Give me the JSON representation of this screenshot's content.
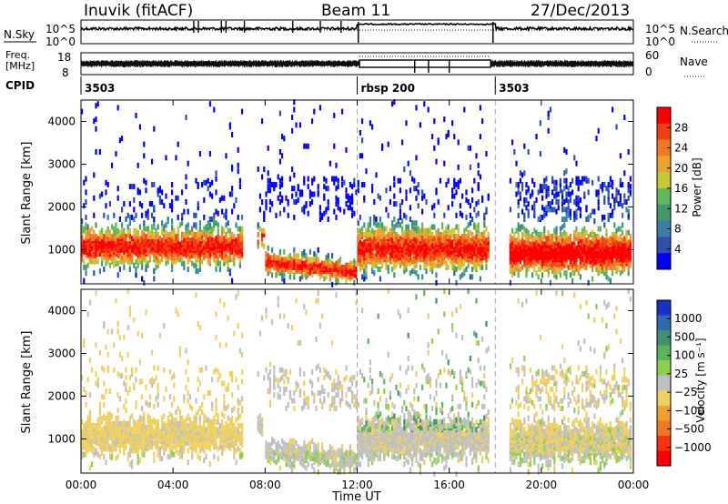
{
  "header": {
    "station": "Inuvik (fitACF)",
    "beam": "Beam 11",
    "date": "27/Dec/2013"
  },
  "status_panels": {
    "nsky_label": "N.Sky",
    "nsearch_label": "N.Search",
    "freq_label_line1": "Freq.",
    "freq_label_line2": "[MHz]",
    "nave_label": "Nave",
    "cpid_label": "CPID",
    "left_ticks_top": [
      "10^5",
      "10^0"
    ],
    "right_ticks_top": [
      "10^5",
      "10^0"
    ],
    "left_ticks_freq": [
      "18",
      "8"
    ],
    "right_ticks_nave": [
      "60",
      "0"
    ],
    "cpid_segments": [
      {
        "label": "3503",
        "start_hour": 0,
        "end_hour": 12
      },
      {
        "label": "rbsp 200",
        "start_hour": 12,
        "end_hour": 18
      },
      {
        "label": "3503",
        "start_hour": 18,
        "end_hour": 24
      }
    ]
  },
  "colors": {
    "power_scale": [
      "#0000ff",
      "#2e4fb0",
      "#3a7fa8",
      "#3e9a6a",
      "#5fb85a",
      "#c8c830",
      "#f0a030",
      "#f07820",
      "#f04010",
      "#ff0000"
    ],
    "velocity_scale": [
      "#1a2fc8",
      "#2e6ab0",
      "#3e9070",
      "#5ab45a",
      "#8ad04a",
      "#c0c0c0",
      "#f0d060",
      "#f0a030",
      "#f07820",
      "#ff3010",
      "#ff0000"
    ]
  },
  "chart_data": [
    {
      "type": "heatmap",
      "panel": "power",
      "ylabel": "Slant Range [km]",
      "xlabel": "",
      "ylim": [
        200,
        4500
      ],
      "yticks": [
        "1000",
        "2000",
        "3000",
        "4000"
      ],
      "xlim_hours": [
        0,
        24
      ],
      "colorbar": {
        "label": "Power [dB]",
        "ticks": [
          "4",
          "8",
          "12",
          "16",
          "20",
          "24",
          "28"
        ],
        "range": [
          0,
          32
        ]
      },
      "dashed_time_markers_hours": [
        12,
        18
      ],
      "data_gaps_hours": [
        [
          7.0,
          7.6
        ],
        [
          17.8,
          18.6
        ]
      ],
      "main_band_km": [
        [
          600,
          1700
        ]
      ],
      "notes_band_stats": [
        {
          "hours": [
            0,
            7
          ],
          "center_km": 1100,
          "power_db": 24
        },
        {
          "hours": [
            8,
            12
          ],
          "center_km": 450,
          "power_db": 28
        },
        {
          "hours": [
            12,
            18
          ],
          "center_km": 1050,
          "power_db": 27
        },
        {
          "hours": [
            18.6,
            24
          ],
          "center_km": 950,
          "power_db": 28
        }
      ]
    },
    {
      "type": "heatmap",
      "panel": "velocity",
      "ylabel": "Slant Range [km]",
      "xlabel": "Time UT",
      "ylim": [
        200,
        4500
      ],
      "yticks": [
        "1000",
        "2000",
        "3000",
        "4000"
      ],
      "xticks": [
        "00:00",
        "04:00",
        "08:00",
        "12:00",
        "16:00",
        "20:00",
        "00:00"
      ],
      "xlim_hours": [
        0,
        24
      ],
      "colorbar": {
        "label": "Velocity [m s⁻¹]",
        "ticks": [
          "1000",
          "500",
          "100",
          "25",
          "−25",
          "−100",
          "−500",
          "−1000"
        ],
        "range": [
          -1200,
          1200
        ]
      },
      "dashed_time_markers_hours": [
        12,
        18
      ],
      "data_gaps_hours": [
        [
          7.0,
          7.6
        ],
        [
          17.8,
          18.6
        ]
      ]
    }
  ]
}
